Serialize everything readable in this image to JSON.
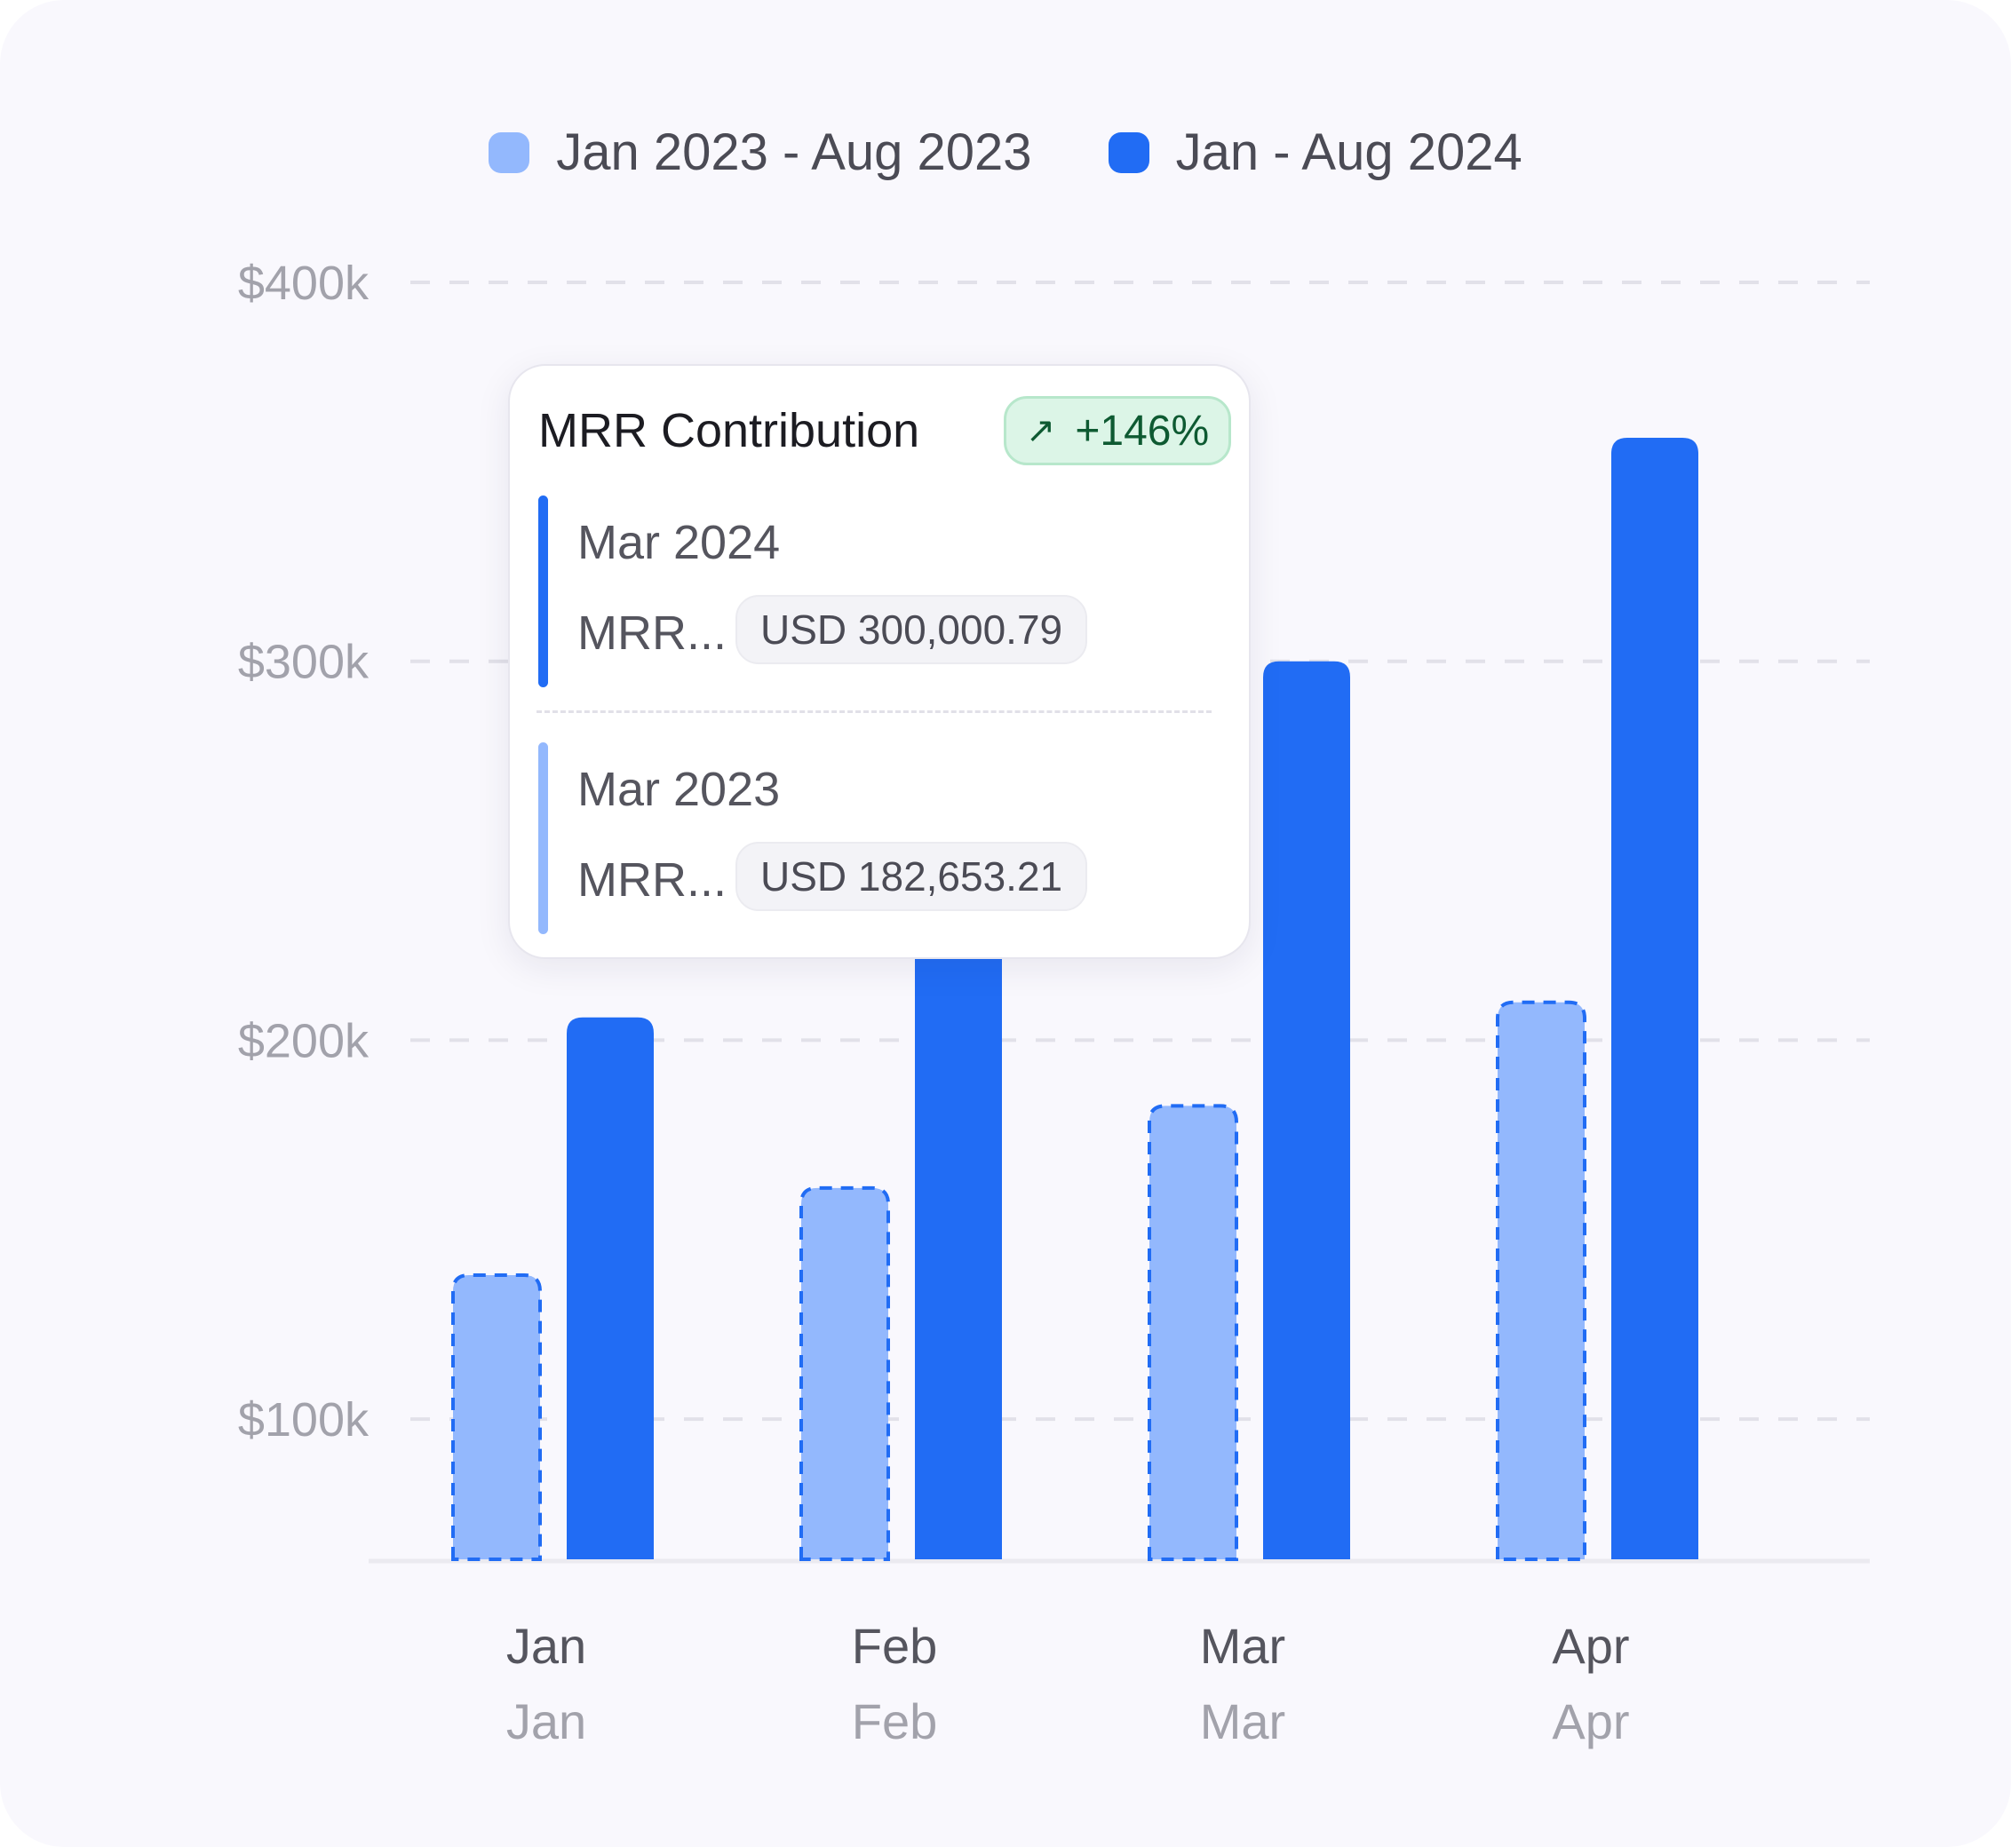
{
  "legend": {
    "series_a": {
      "label": "Jan 2023 - Aug 2023",
      "color": "#93b8fd"
    },
    "series_b": {
      "label": "Jan - Aug 2024",
      "color": "#216cf4"
    }
  },
  "chart_data": {
    "type": "bar",
    "categories": [
      "Jan",
      "Feb",
      "Mar",
      "Apr"
    ],
    "category_sublabels": [
      "Jan",
      "Feb",
      "Mar",
      "Apr"
    ],
    "series": [
      {
        "name": "Jan 2023 - Aug 2023",
        "color": "#93b8fd",
        "border": "dashed",
        "values": [
          138000,
          161000,
          182653.21,
          210000
        ]
      },
      {
        "name": "Jan - Aug 2024",
        "color": "#216cf4",
        "values": [
          206000,
          245000,
          300000.79,
          359000
        ]
      }
    ],
    "yticks": [
      100000,
      200000,
      300000,
      400000
    ],
    "ytick_labels": [
      "$100k",
      "$200k",
      "$300k",
      "$400k"
    ],
    "ylim": [
      63000,
      400000
    ],
    "grid": "dashed horizontal",
    "legend_position": "top-center"
  },
  "tooltip": {
    "title": "MRR Contribution",
    "badge": {
      "arrow": "↗",
      "text": "+146%",
      "icon": "arrow-up-right-icon"
    },
    "entries": [
      {
        "period": "Mar 2024",
        "metric": "MRR...",
        "value": "USD 300,000.79",
        "color": "#216cf4"
      },
      {
        "period": "Mar 2023",
        "metric": "MRR...",
        "value": "USD 182,653.21",
        "color": "#93b8fd"
      }
    ]
  }
}
